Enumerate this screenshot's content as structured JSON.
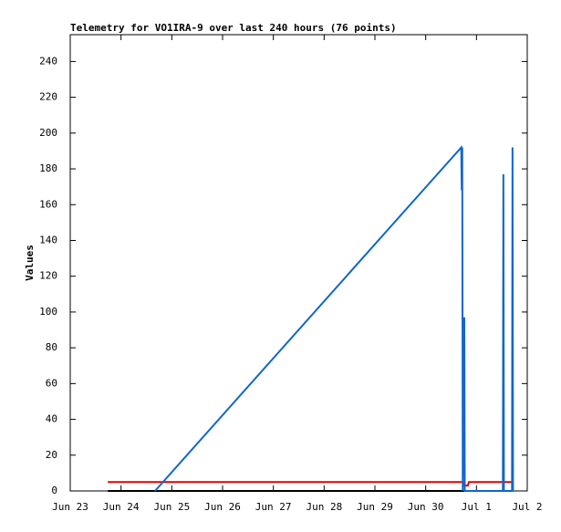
{
  "chart_data": {
    "type": "line",
    "title": "Telemetry for VO1IRA-9 over last 240 hours (76 points)",
    "y_label": "Values",
    "xlim": [
      0,
      9
    ],
    "xticks": [
      {
        "value": 0,
        "label": "Jun 23"
      },
      {
        "value": 1,
        "label": "Jun 24"
      },
      {
        "value": 2,
        "label": "Jun 25"
      },
      {
        "value": 3,
        "label": "Jun 26"
      },
      {
        "value": 4,
        "label": "Jun 27"
      },
      {
        "value": 5,
        "label": "Jun 28"
      },
      {
        "value": 6,
        "label": "Jun 29"
      },
      {
        "value": 7,
        "label": "Jun 30"
      },
      {
        "value": 8,
        "label": "Jul 1"
      },
      {
        "value": 9,
        "label": "Jul 2"
      }
    ],
    "ylim": [
      0,
      255
    ],
    "yticks": [
      0,
      20,
      40,
      60,
      80,
      100,
      120,
      140,
      160,
      180,
      200,
      220,
      240
    ],
    "series": [
      {
        "color": "#e00000",
        "x": [
          0.74,
          7.73,
          7.75,
          7.83,
          7.85,
          8.69
        ],
        "values": [
          5,
          5,
          3,
          3,
          5,
          5
        ]
      },
      {
        "color": "#000000",
        "x": [
          0.74,
          8.69
        ],
        "values": [
          0,
          0
        ]
      },
      {
        "color": "#1166cc",
        "x": [
          1.67,
          7.7,
          7.71,
          7.72,
          7.73,
          7.76,
          7.77,
          8.52,
          8.53,
          8.54,
          8.7,
          8.71,
          8.72
        ],
        "values": [
          0,
          192,
          168,
          192,
          0,
          97,
          0,
          0,
          177,
          0,
          0,
          192,
          0
        ]
      }
    ]
  }
}
